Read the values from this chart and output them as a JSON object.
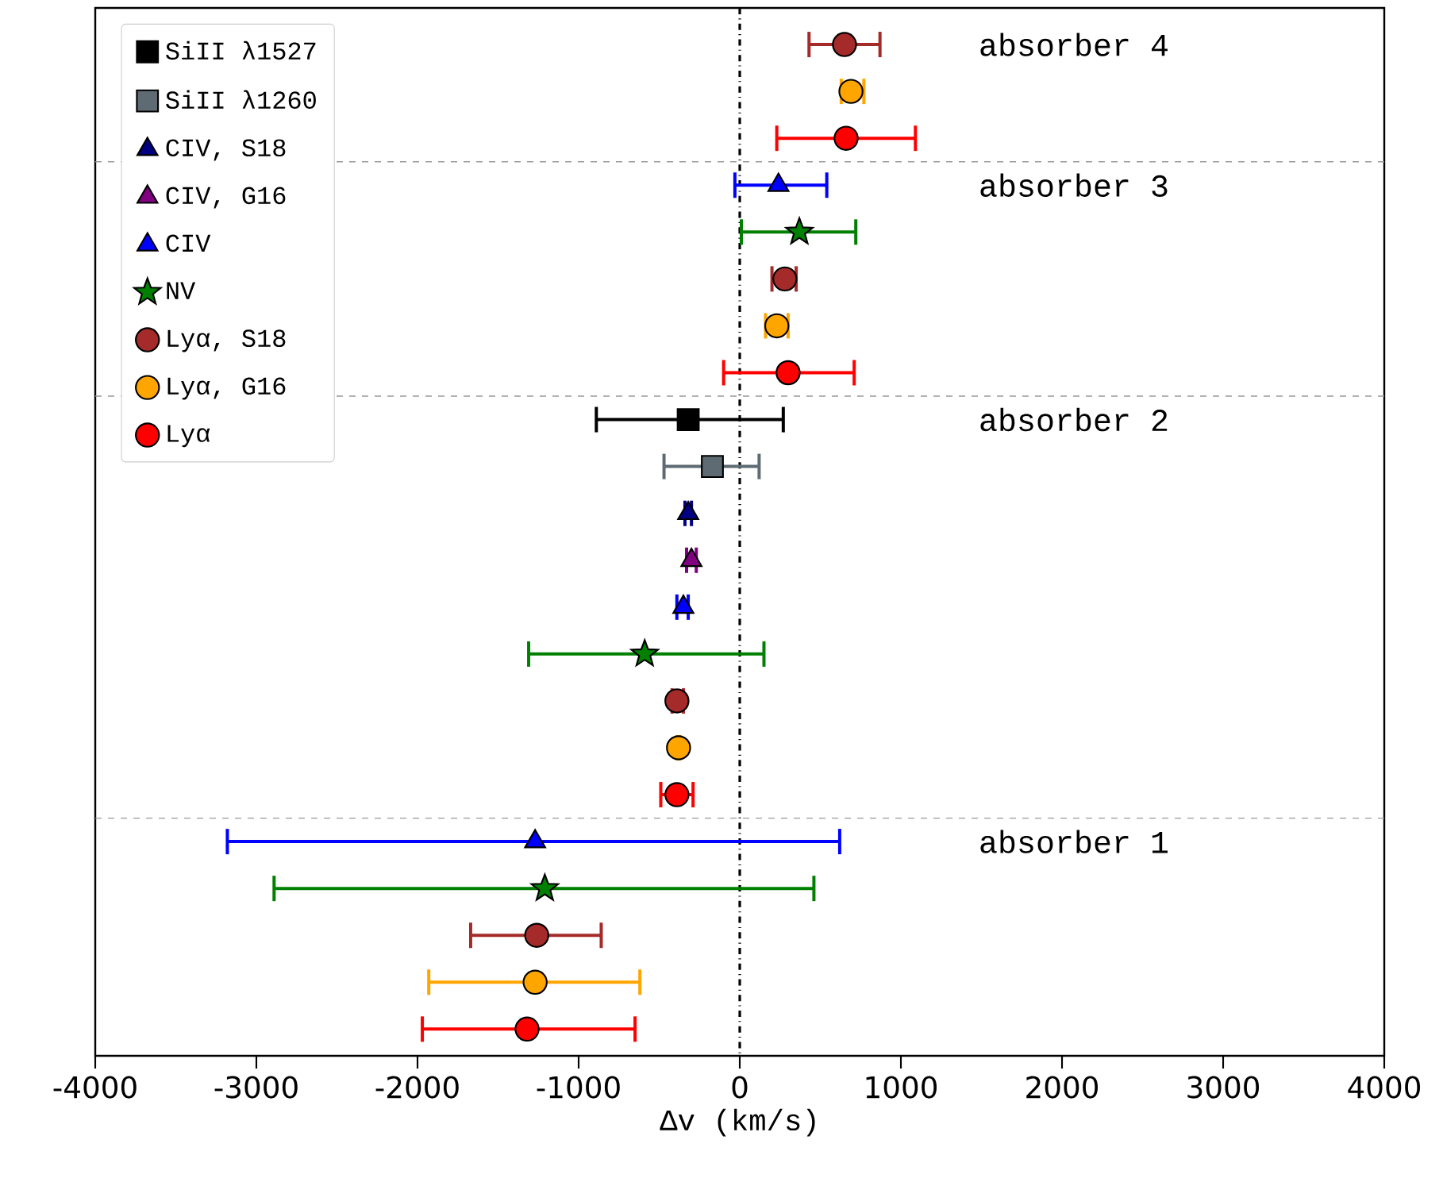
{
  "chart_data": {
    "type": "scatter",
    "orientation": "horizontal",
    "xlabel": "Δv (km/s)",
    "categories": [
      null,
      null,
      null,
      null,
      null,
      null,
      null,
      null,
      null,
      null,
      null,
      null,
      null,
      null,
      null,
      null,
      null,
      null,
      null,
      null,
      null,
      null
    ],
    "xlim": [
      -4000,
      4000
    ],
    "xticks": [
      -4000,
      -3000,
      -2000,
      -1000,
      0,
      1000,
      2000,
      3000,
      4000
    ],
    "tick_labels": "x",
    "legend": "top left",
    "series": [
      {
        "name": "SiII λ1527",
        "color": "#000000",
        "marker": "square",
        "values": [
          null,
          null,
          null,
          null,
          null,
          null,
          null,
          null,
          -320,
          null,
          null,
          null,
          null,
          null,
          null,
          null,
          null,
          null,
          null,
          null,
          null,
          null
        ],
        "errors": [
          null,
          null,
          null,
          null,
          null,
          null,
          null,
          null,
          [
            -900,
            280
          ],
          null,
          null,
          null,
          null,
          null,
          null,
          null,
          null,
          null,
          null,
          null,
          null,
          null
        ]
      },
      {
        "name": "SiII λ1260",
        "color": "#5f6b73",
        "marker": "square",
        "values": [
          null,
          null,
          null,
          null,
          null,
          null,
          null,
          null,
          null,
          -170,
          null,
          null,
          null,
          null,
          null,
          null,
          null,
          null,
          null,
          null,
          null,
          null
        ],
        "errors": [
          null,
          null,
          null,
          null,
          null,
          null,
          null,
          null,
          null,
          [
            -480,
            130
          ],
          null,
          null,
          null,
          null,
          null,
          null,
          null,
          null,
          null,
          null,
          null,
          null
        ]
      },
      {
        "name": "CIV, S18",
        "color": "#000080",
        "marker": "triangle",
        "values": [
          null,
          null,
          null,
          null,
          null,
          null,
          null,
          null,
          null,
          null,
          -320,
          null,
          null,
          null,
          null,
          null,
          null,
          null,
          null,
          null,
          null,
          null
        ],
        "errors": [
          null,
          null,
          null,
          null,
          null,
          null,
          null,
          null,
          null,
          null,
          [
            -350,
            -290
          ],
          null,
          null,
          null,
          null,
          null,
          null,
          null,
          null,
          null,
          null,
          null
        ]
      },
      {
        "name": "CIV, G16",
        "color": "#800080",
        "marker": "triangle",
        "values": [
          null,
          null,
          null,
          null,
          null,
          null,
          null,
          null,
          null,
          null,
          null,
          -300,
          null,
          null,
          null,
          null,
          null,
          null,
          null,
          null,
          null,
          null
        ],
        "errors": [
          null,
          null,
          null,
          null,
          null,
          null,
          null,
          null,
          null,
          null,
          null,
          [
            -340,
            -260
          ],
          null,
          null,
          null,
          null,
          null,
          null,
          null,
          null,
          null,
          null
        ]
      },
      {
        "name": "CIV",
        "color": "#0000ff",
        "marker": "triangle",
        "values": [
          null,
          null,
          null,
          240,
          null,
          null,
          null,
          null,
          null,
          null,
          null,
          null,
          -350,
          null,
          null,
          null,
          null,
          -1270,
          null,
          null,
          null,
          null
        ],
        "errors": [
          null,
          null,
          null,
          [
            -40,
            550
          ],
          null,
          null,
          null,
          null,
          null,
          null,
          null,
          null,
          [
            -400,
            -310
          ],
          null,
          null,
          null,
          null,
          [
            -3190,
            630
          ],
          null,
          null,
          null,
          null
        ]
      },
      {
        "name": "NV",
        "color": "#008000",
        "marker": "star",
        "values": [
          null,
          null,
          null,
          null,
          370,
          null,
          null,
          null,
          null,
          null,
          null,
          null,
          null,
          -590,
          null,
          null,
          null,
          null,
          -1210,
          null,
          null,
          null
        ],
        "errors": [
          null,
          null,
          null,
          null,
          [
            0,
            730
          ],
          null,
          null,
          null,
          null,
          null,
          null,
          null,
          null,
          [
            -1320,
            160
          ],
          null,
          null,
          null,
          null,
          [
            -2900,
            470
          ],
          null,
          null,
          null
        ]
      },
      {
        "name": "Lyα, S18",
        "color": "#a52a2a",
        "marker": "circle",
        "values": [
          650,
          null,
          null,
          null,
          null,
          280,
          null,
          null,
          null,
          null,
          null,
          null,
          null,
          null,
          -390,
          null,
          null,
          null,
          null,
          -1260,
          null,
          null
        ],
        "errors": [
          [
            420,
            880
          ],
          null,
          null,
          null,
          null,
          [
            190,
            360
          ],
          null,
          null,
          null,
          null,
          null,
          null,
          null,
          null,
          [
            -430,
            -340
          ],
          null,
          null,
          null,
          null,
          [
            -1680,
            -850
          ],
          null,
          null
        ]
      },
      {
        "name": "Lyα, G16",
        "color": "#ffa500",
        "marker": "circle",
        "values": [
          null,
          690,
          null,
          null,
          null,
          null,
          230,
          null,
          null,
          null,
          null,
          null,
          null,
          null,
          null,
          -380,
          null,
          null,
          null,
          null,
          -1270,
          null
        ],
        "errors": [
          null,
          [
            620,
            780
          ],
          null,
          null,
          null,
          null,
          [
            150,
            310
          ],
          null,
          null,
          null,
          null,
          null,
          null,
          null,
          null,
          [
            -400,
            -360
          ],
          null,
          null,
          null,
          null,
          [
            -1940,
            -610
          ],
          null
        ]
      },
      {
        "name": "Lyα",
        "color": "#ff0000",
        "marker": "circle",
        "values": [
          null,
          null,
          660,
          null,
          null,
          null,
          null,
          300,
          null,
          null,
          null,
          null,
          null,
          null,
          null,
          null,
          -390,
          null,
          null,
          null,
          null,
          -1320
        ],
        "errors": [
          null,
          null,
          [
            220,
            1100
          ],
          null,
          null,
          null,
          null,
          [
            -110,
            720
          ],
          null,
          null,
          null,
          null,
          null,
          null,
          null,
          null,
          [
            -500,
            -280
          ],
          null,
          null,
          null,
          null,
          [
            -1980,
            -640
          ]
        ]
      }
    ],
    "ref_lines": [
      {
        "axis": "x",
        "value": 0,
        "color": "#000000",
        "line_style": "dashdot"
      }
    ],
    "annotations": [
      "absorber 4",
      "absorber 3",
      "absorber 2",
      "absorber 1"
    ]
  }
}
